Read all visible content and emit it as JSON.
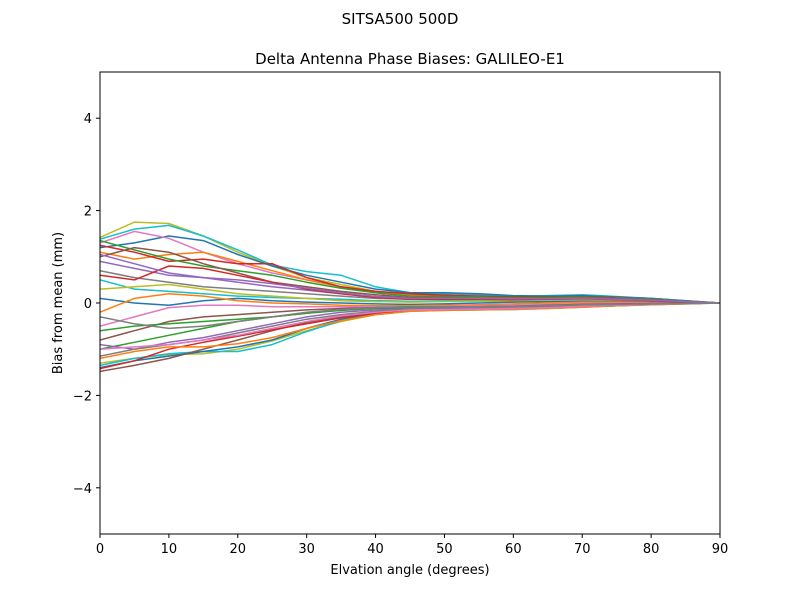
{
  "suptitle": "SITSA500        500D",
  "chart_data": {
    "type": "line",
    "title": "Delta Antenna Phase Biases: GALILEO-E1",
    "xlabel": "Elvation angle (degrees)",
    "ylabel": "Bias from mean (mm)",
    "xlim": [
      0,
      90
    ],
    "ylim": [
      -5,
      5
    ],
    "xticks": [
      0,
      10,
      20,
      30,
      40,
      50,
      60,
      70,
      80,
      90
    ],
    "yticks": [
      -4,
      -2,
      0,
      2,
      4
    ],
    "ytick_labels": [
      "−4",
      "−2",
      "0",
      "2",
      "4"
    ],
    "grid": false,
    "x": [
      0,
      5,
      10,
      15,
      20,
      25,
      30,
      35,
      40,
      45,
      50,
      55,
      60,
      65,
      70,
      75,
      80,
      85,
      90
    ],
    "series": [
      {
        "color": "#bcbd22",
        "values": [
          1.42,
          1.75,
          1.72,
          1.45,
          1.1,
          0.8,
          0.55,
          0.4,
          0.25,
          0.2,
          0.2,
          0.18,
          0.15,
          0.15,
          0.15,
          0.12,
          0.1,
          0.05,
          0
        ]
      },
      {
        "color": "#17becf",
        "values": [
          1.38,
          1.6,
          1.68,
          1.45,
          1.15,
          0.82,
          0.68,
          0.6,
          0.35,
          0.22,
          0.2,
          0.18,
          0.14,
          0.16,
          0.18,
          0.14,
          0.1,
          0.05,
          0
        ]
      },
      {
        "color": "#1f77b4",
        "values": [
          1.2,
          1.3,
          1.45,
          1.35,
          1.05,
          0.8,
          0.6,
          0.45,
          0.3,
          0.22,
          0.22,
          0.2,
          0.16,
          0.15,
          0.16,
          0.13,
          0.1,
          0.05,
          0
        ]
      },
      {
        "color": "#e377c2",
        "values": [
          1.3,
          1.55,
          1.4,
          1.1,
          0.85,
          0.65,
          0.5,
          0.35,
          0.22,
          0.16,
          0.15,
          0.14,
          0.12,
          0.12,
          0.13,
          0.11,
          0.08,
          0.04,
          0
        ]
      },
      {
        "color": "#ff7f0e",
        "values": [
          1.1,
          0.95,
          1.05,
          1.1,
          0.9,
          0.7,
          0.5,
          0.35,
          0.25,
          0.18,
          0.16,
          0.15,
          0.12,
          0.12,
          0.13,
          0.11,
          0.08,
          0.04,
          0
        ]
      },
      {
        "color": "#d62728",
        "values": [
          1.25,
          1.1,
          0.9,
          0.95,
          0.85,
          0.85,
          0.55,
          0.35,
          0.25,
          0.2,
          0.17,
          0.15,
          0.13,
          0.13,
          0.14,
          0.11,
          0.08,
          0.04,
          0
        ]
      },
      {
        "color": "#2ca02c",
        "values": [
          1.35,
          1.15,
          0.95,
          0.8,
          0.7,
          0.6,
          0.45,
          0.32,
          0.22,
          0.15,
          0.14,
          0.13,
          0.11,
          0.12,
          0.13,
          0.1,
          0.08,
          0.04,
          0
        ]
      },
      {
        "color": "#8c564b",
        "values": [
          1.0,
          1.2,
          1.1,
          0.85,
          0.65,
          0.45,
          0.35,
          0.25,
          0.18,
          0.12,
          0.12,
          0.1,
          0.09,
          0.1,
          0.11,
          0.09,
          0.07,
          0.03,
          0
        ]
      },
      {
        "color": "#9467bd",
        "values": [
          0.9,
          0.75,
          0.6,
          0.55,
          0.45,
          0.35,
          0.28,
          0.2,
          0.14,
          0.1,
          0.1,
          0.1,
          0.09,
          0.09,
          0.1,
          0.08,
          0.06,
          0.03,
          0
        ]
      },
      {
        "color": "#7f7f7f",
        "values": [
          0.7,
          0.55,
          0.45,
          0.35,
          0.3,
          0.25,
          0.2,
          0.15,
          0.1,
          0.08,
          0.08,
          0.08,
          0.07,
          0.08,
          0.09,
          0.07,
          0.05,
          0.03,
          0
        ]
      },
      {
        "color": "#17becf",
        "values": [
          0.5,
          0.3,
          0.25,
          0.2,
          0.15,
          0.12,
          0.1,
          0.08,
          0.05,
          0.04,
          0.05,
          0.05,
          0.05,
          0.06,
          0.07,
          0.06,
          0.04,
          0.02,
          0
        ]
      },
      {
        "color": "#bcbd22",
        "values": [
          0.3,
          0.35,
          0.4,
          0.3,
          0.2,
          0.15,
          0.1,
          0.05,
          0.03,
          0.02,
          0.03,
          0.04,
          0.04,
          0.05,
          0.06,
          0.05,
          0.04,
          0.02,
          0
        ]
      },
      {
        "color": "#1f77b4",
        "values": [
          0.1,
          0.0,
          -0.05,
          0.05,
          0.1,
          0.05,
          0.02,
          0.0,
          -0.02,
          -0.03,
          -0.02,
          0.0,
          0.02,
          0.03,
          0.04,
          0.03,
          0.02,
          0.01,
          0
        ]
      },
      {
        "color": "#ff7f0e",
        "values": [
          -0.2,
          0.1,
          0.2,
          0.15,
          0.05,
          0.0,
          -0.02,
          -0.05,
          -0.06,
          -0.06,
          -0.05,
          -0.04,
          -0.02,
          0.0,
          0.02,
          0.02,
          0.01,
          0.0,
          0
        ]
      },
      {
        "color": "#e377c2",
        "values": [
          -0.5,
          -0.3,
          -0.1,
          -0.05,
          -0.05,
          -0.08,
          -0.08,
          -0.08,
          -0.08,
          -0.08,
          -0.07,
          -0.06,
          -0.05,
          -0.03,
          -0.01,
          0.0,
          0.0,
          0.0,
          0
        ]
      },
      {
        "color": "#8c564b",
        "values": [
          -0.8,
          -0.6,
          -0.4,
          -0.3,
          -0.25,
          -0.2,
          -0.15,
          -0.12,
          -0.1,
          -0.1,
          -0.09,
          -0.08,
          -0.07,
          -0.05,
          -0.03,
          -0.02,
          -0.01,
          0.0,
          0
        ]
      },
      {
        "color": "#2ca02c",
        "values": [
          -1.0,
          -0.85,
          -0.7,
          -0.55,
          -0.4,
          -0.3,
          -0.22,
          -0.16,
          -0.12,
          -0.11,
          -0.1,
          -0.1,
          -0.09,
          -0.07,
          -0.05,
          -0.03,
          -0.02,
          -0.01,
          0
        ]
      },
      {
        "color": "#9467bd",
        "values": [
          -0.9,
          -1.0,
          -0.85,
          -0.75,
          -0.6,
          -0.45,
          -0.3,
          -0.2,
          -0.15,
          -0.13,
          -0.12,
          -0.11,
          -0.1,
          -0.08,
          -0.06,
          -0.04,
          -0.02,
          -0.01,
          0
        ]
      },
      {
        "color": "#7f7f7f",
        "values": [
          -1.15,
          -1.0,
          -0.9,
          -0.8,
          -0.65,
          -0.5,
          -0.35,
          -0.25,
          -0.18,
          -0.14,
          -0.13,
          -0.12,
          -0.11,
          -0.09,
          -0.07,
          -0.05,
          -0.03,
          -0.01,
          0
        ]
      },
      {
        "color": "#bcbd22",
        "values": [
          -1.3,
          -1.2,
          -1.12,
          -1.1,
          -1.0,
          -0.82,
          -0.6,
          -0.4,
          -0.25,
          -0.17,
          -0.15,
          -0.14,
          -0.13,
          -0.11,
          -0.08,
          -0.06,
          -0.03,
          -0.01,
          0
        ]
      },
      {
        "color": "#17becf",
        "values": [
          -1.35,
          -1.2,
          -1.1,
          -1.05,
          -1.05,
          -0.9,
          -0.62,
          -0.38,
          -0.25,
          -0.18,
          -0.16,
          -0.15,
          -0.14,
          -0.12,
          -0.09,
          -0.06,
          -0.04,
          -0.02,
          0
        ]
      },
      {
        "color": "#1f77b4",
        "values": [
          -1.4,
          -1.25,
          -1.15,
          -1.05,
          -0.95,
          -0.8,
          -0.55,
          -0.35,
          -0.22,
          -0.16,
          -0.15,
          -0.14,
          -0.13,
          -0.11,
          -0.08,
          -0.06,
          -0.03,
          -0.01,
          0
        ]
      },
      {
        "color": "#8c564b",
        "values": [
          -1.48,
          -1.35,
          -1.2,
          -1.0,
          -0.8,
          -0.6,
          -0.42,
          -0.3,
          -0.2,
          -0.15,
          -0.14,
          -0.14,
          -0.13,
          -0.11,
          -0.08,
          -0.06,
          -0.03,
          -0.01,
          0
        ]
      },
      {
        "color": "#d62728",
        "values": [
          -1.42,
          -1.25,
          -1.0,
          -0.85,
          -0.72,
          -0.58,
          -0.45,
          -0.32,
          -0.22,
          -0.16,
          -0.15,
          -0.14,
          -0.13,
          -0.1,
          -0.08,
          -0.05,
          -0.03,
          -0.01,
          0
        ]
      },
      {
        "color": "#ff7f0e",
        "values": [
          -1.2,
          -1.05,
          -0.95,
          -0.95,
          -0.88,
          -0.75,
          -0.55,
          -0.38,
          -0.25,
          -0.18,
          -0.16,
          -0.15,
          -0.14,
          -0.12,
          -0.09,
          -0.06,
          -0.04,
          -0.02,
          0
        ]
      },
      {
        "color": "#e377c2",
        "values": [
          -1.0,
          -0.95,
          -0.9,
          -0.8,
          -0.7,
          -0.55,
          -0.4,
          -0.28,
          -0.2,
          -0.15,
          -0.14,
          -0.13,
          -0.12,
          -0.1,
          -0.07,
          -0.05,
          -0.03,
          -0.01,
          0
        ]
      },
      {
        "color": "#2ca02c",
        "values": [
          -0.6,
          -0.5,
          -0.45,
          -0.4,
          -0.35,
          -0.3,
          -0.22,
          -0.15,
          -0.1,
          -0.08,
          -0.08,
          -0.08,
          -0.07,
          -0.06,
          -0.04,
          -0.03,
          -0.02,
          -0.01,
          0
        ]
      },
      {
        "color": "#d62728",
        "values": [
          0.6,
          0.5,
          0.8,
          0.75,
          0.6,
          0.45,
          0.3,
          0.2,
          0.12,
          0.08,
          0.08,
          0.08,
          0.07,
          0.08,
          0.09,
          0.07,
          0.05,
          0.02,
          0
        ]
      },
      {
        "color": "#9467bd",
        "values": [
          1.05,
          0.85,
          0.65,
          0.55,
          0.5,
          0.42,
          0.32,
          0.22,
          0.14,
          0.1,
          0.1,
          0.1,
          0.09,
          0.09,
          0.1,
          0.08,
          0.06,
          0.03,
          0
        ]
      },
      {
        "color": "#7f7f7f",
        "values": [
          -0.3,
          -0.45,
          -0.55,
          -0.5,
          -0.4,
          -0.3,
          -0.2,
          -0.14,
          -0.1,
          -0.08,
          -0.08,
          -0.08,
          -0.07,
          -0.06,
          -0.04,
          -0.03,
          -0.02,
          -0.01,
          0
        ]
      }
    ]
  }
}
